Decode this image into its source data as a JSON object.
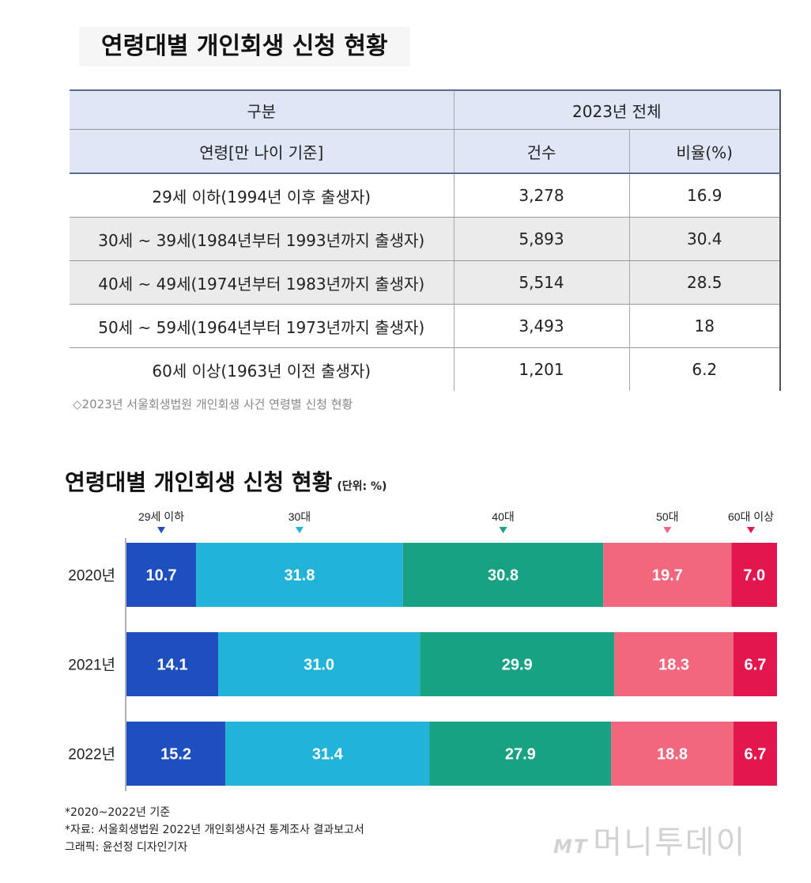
{
  "table_title": "연령대별 개인회생 신청 현황",
  "table": {
    "header1": [
      "구분",
      "2023년 전체"
    ],
    "header2": [
      "연령[만 나이 기준]",
      "건수",
      "비율(%)"
    ],
    "rows": [
      {
        "label": "29세 이하(1994년 이후 출생자)",
        "count": "3,278",
        "ratio": "16.9"
      },
      {
        "label": "30세 ~ 39세(1984년부터 1993년까지 출생자)",
        "count": "5,893",
        "ratio": "30.4"
      },
      {
        "label": "40세 ~ 49세(1974년부터 1983년까지 출생자)",
        "count": "5,514",
        "ratio": "28.5"
      },
      {
        "label": "50세 ~ 59세(1964년부터 1973년까지 출생자)",
        "count": "3,493",
        "ratio": "18"
      },
      {
        "label": "60세 이상(1963년 이전 출생자)",
        "count": "1,201",
        "ratio": "6.2"
      }
    ]
  },
  "table_caption": "◇2023년 서울회생법원 개인회생 사건 연령별 신청 현황",
  "chart_title": "연령대별 개인회생 신청 현황",
  "chart_unit": "(단위: %)",
  "chart_data": {
    "type": "bar",
    "orientation": "horizontal-stacked",
    "title": "연령대별 개인회생 신청 현황",
    "unit": "(단위: %)",
    "categories": [
      "2020년",
      "2021년",
      "2022년"
    ],
    "series": [
      {
        "name": "29세 이하",
        "color": "#1f4fbf",
        "values": [
          10.7,
          14.1,
          15.2
        ]
      },
      {
        "name": "30대",
        "color": "#22b3d8",
        "values": [
          31.8,
          31.0,
          31.4
        ]
      },
      {
        "name": "40대",
        "color": "#17a283",
        "values": [
          30.8,
          29.9,
          27.9
        ]
      },
      {
        "name": "50대",
        "color": "#f0677e",
        "values": [
          19.7,
          18.3,
          18.8
        ]
      },
      {
        "name": "60대 이상",
        "color": "#e2174e",
        "values": [
          7.0,
          6.7,
          6.7
        ]
      }
    ],
    "xlim": [
      0,
      100
    ]
  },
  "notes": [
    "*2020~2022년 기준",
    "*자료: 서울회생법원 2022년 개인회생사건 통계조사 결과보고서",
    "그래픽: 윤선정 디자인기자"
  ],
  "watermark": {
    "small": "MT",
    "main": "머니투데이"
  }
}
